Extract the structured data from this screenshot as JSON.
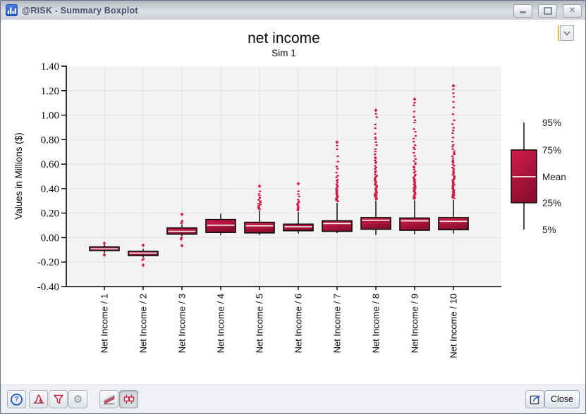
{
  "window": {
    "title": "@RISK - Summary Boxplot",
    "app_icon": "bar-chart-icon",
    "controls": [
      "minimize",
      "maximize",
      "close"
    ]
  },
  "graph_dropdown": {
    "icon": "chevron-down-icon"
  },
  "chart_data": {
    "type": "boxplot",
    "title": "net income",
    "subtitle": "Sim 1",
    "ylabel": "Values in Millions ($)",
    "ylim": [
      -0.4,
      1.4
    ],
    "ytick_step": 0.2,
    "yticks": [
      "1.40",
      "1.20",
      "1.00",
      "0.80",
      "0.60",
      "0.40",
      "0.20",
      "0.00",
      "-0.20",
      "-0.40"
    ],
    "grid": true,
    "legend": {
      "position": "right",
      "labels": [
        "95%",
        "75%",
        "Mean",
        "25%",
        "5%"
      ]
    },
    "colors": {
      "box_gradient_top": "#d51c4b",
      "box_gradient_bottom": "#8c0e2f",
      "box_border": "#0a0a0a",
      "mean_line": "#f0eaea",
      "outlier": "#d31945",
      "plot_bg": "#f3f3f4",
      "gridline": "#e2e2e4"
    },
    "series": [
      {
        "label": "Net Income / 1",
        "p5": -0.125,
        "p25": -0.106,
        "mean": -0.092,
        "p75": -0.076,
        "p95": -0.059,
        "out_high": -0.046,
        "out_low": -0.142
      },
      {
        "label": "Net Income / 2",
        "p5": -0.163,
        "p25": -0.147,
        "mean": -0.127,
        "p75": -0.112,
        "p95": -0.092,
        "out_high": -0.063,
        "out_low": -0.225
      },
      {
        "label": "Net Income / 3",
        "p5": 0.012,
        "p25": 0.028,
        "mean": 0.051,
        "p75": 0.079,
        "p95": 0.106,
        "out_high": 0.19,
        "out_low": -0.066
      },
      {
        "label": "Net Income / 4",
        "p5": 0.021,
        "p25": 0.042,
        "mean": 0.101,
        "p75": 0.148,
        "p95": 0.195,
        "out_high": null,
        "out_low": null
      },
      {
        "label": "Net Income / 5",
        "p5": 0.022,
        "p25": 0.038,
        "mean": 0.096,
        "p75": 0.125,
        "p95": 0.22,
        "out_high": 0.42,
        "out_low": null
      },
      {
        "label": "Net Income / 6",
        "p5": 0.033,
        "p25": 0.056,
        "mean": 0.088,
        "p75": 0.11,
        "p95": 0.21,
        "out_high": 0.44,
        "out_low": null
      },
      {
        "label": "Net Income / 7",
        "p5": 0.037,
        "p25": 0.051,
        "mean": 0.115,
        "p75": 0.137,
        "p95": 0.285,
        "out_high": 0.78,
        "out_low": null
      },
      {
        "label": "Net Income / 8",
        "p5": 0.022,
        "p25": 0.068,
        "mean": 0.141,
        "p75": 0.164,
        "p95": 0.3,
        "out_high": 1.04,
        "out_low": null
      },
      {
        "label": "Net Income / 9",
        "p5": 0.028,
        "p25": 0.06,
        "mean": 0.137,
        "p75": 0.16,
        "p95": 0.305,
        "out_high": 1.13,
        "out_low": null
      },
      {
        "label": "Net Income / 10",
        "p5": 0.033,
        "p25": 0.064,
        "mean": 0.133,
        "p75": 0.164,
        "p95": 0.31,
        "out_high": 1.24,
        "out_low": null
      }
    ]
  },
  "toolbar": {
    "left_icons": [
      "help-icon",
      "distribution-icon",
      "filter-icon",
      "gear-icon"
    ],
    "view_icons": [
      "summary-trend-icon",
      "summary-boxplot-icon"
    ],
    "active_view": "summary-boxplot",
    "export_icon": "export-icon",
    "close_label": "Close"
  }
}
